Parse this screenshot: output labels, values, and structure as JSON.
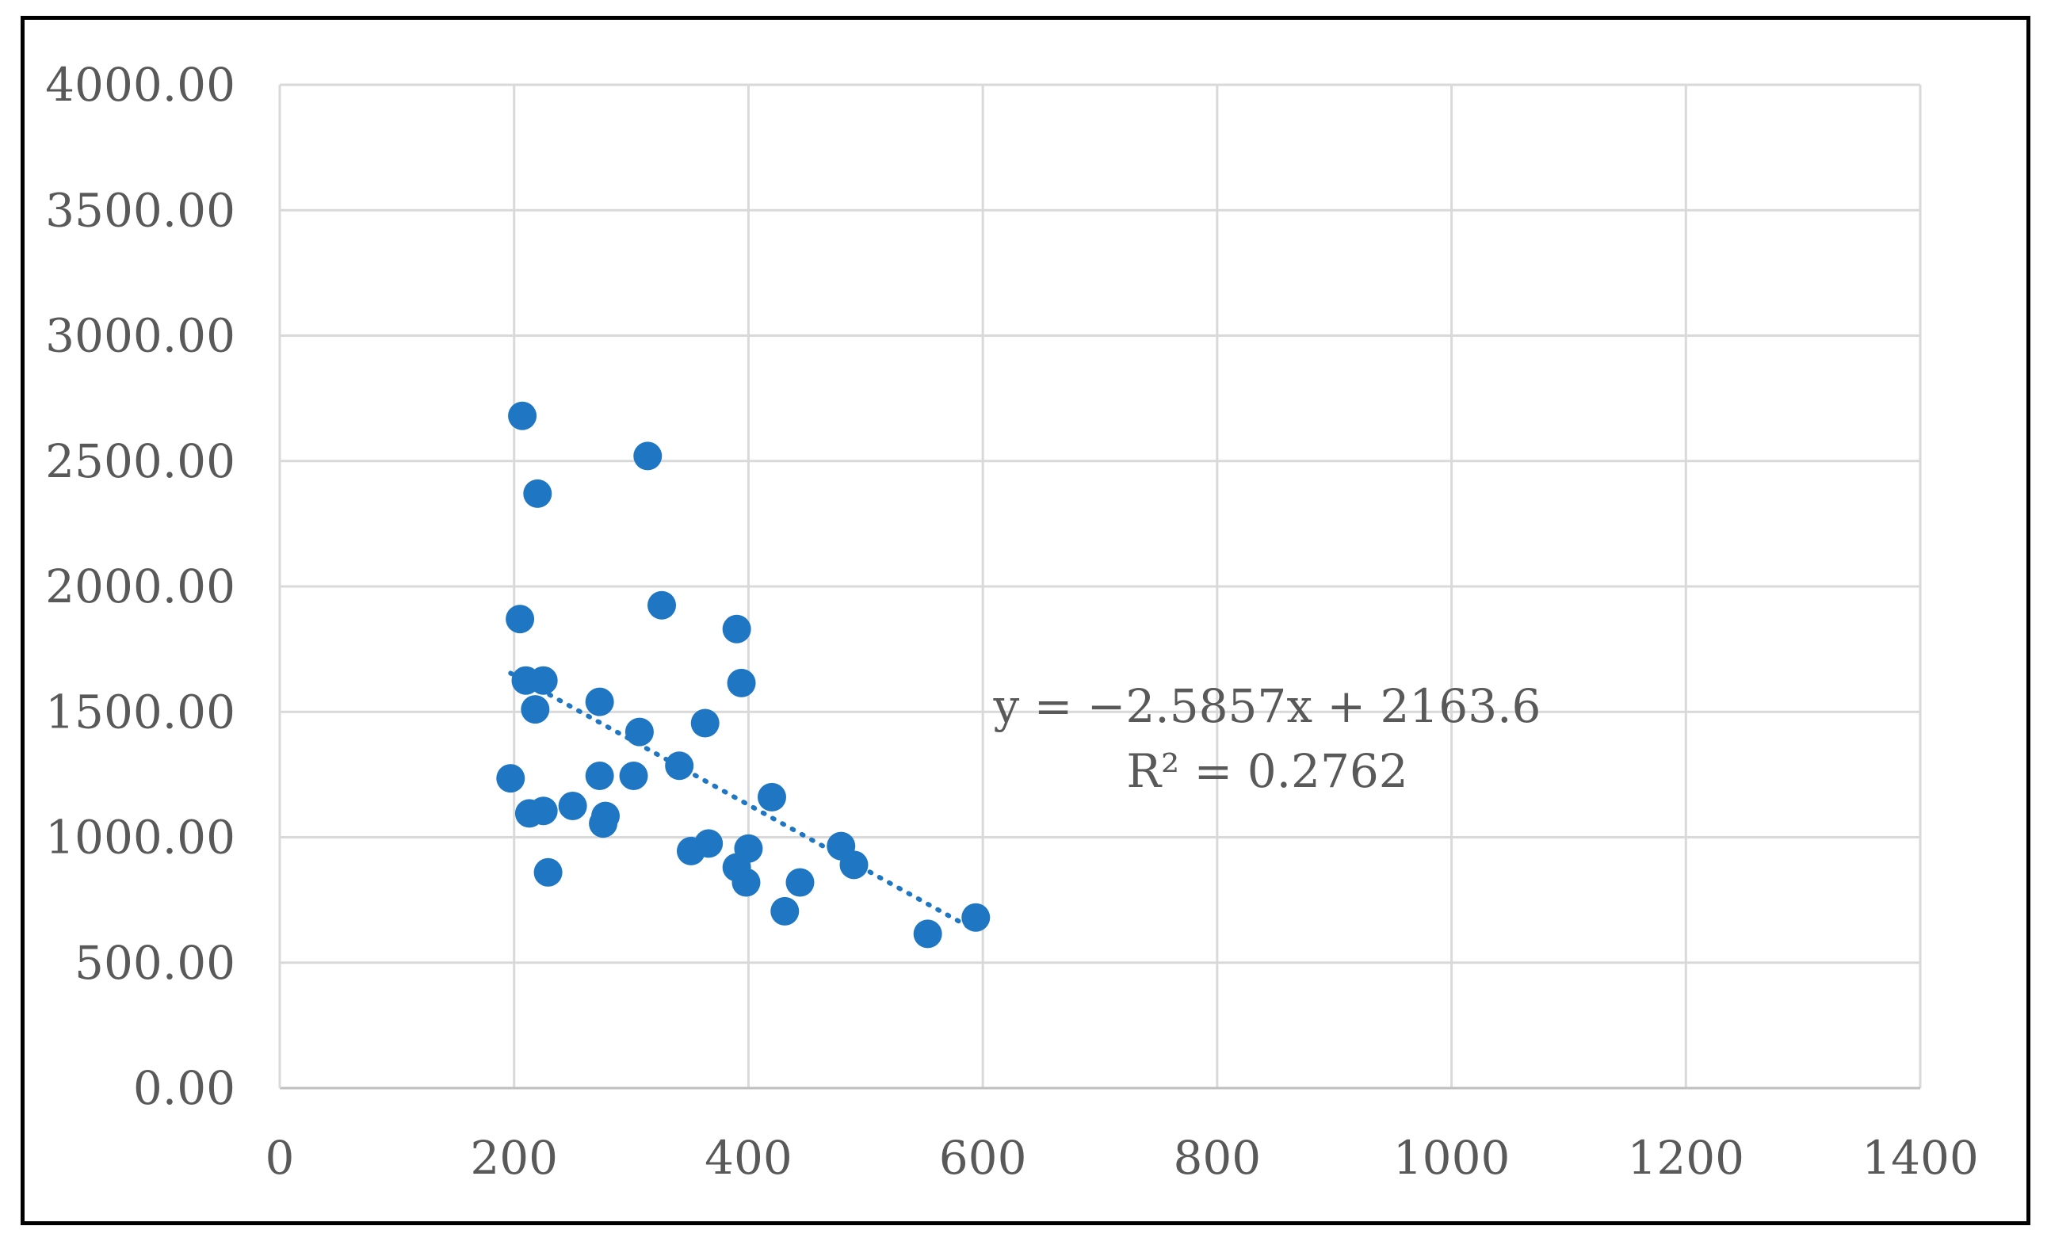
{
  "chart_data": {
    "type": "scatter",
    "title": "",
    "xlabel": "",
    "ylabel": "",
    "xlim": [
      0,
      1400
    ],
    "ylim": [
      0,
      4000
    ],
    "x_ticks": [
      0,
      200,
      400,
      600,
      800,
      1000,
      1200,
      1400
    ],
    "x_tick_labels": [
      "0",
      "200",
      "400",
      "600",
      "800",
      "1000",
      "1200",
      "1400"
    ],
    "y_ticks": [
      0,
      500,
      1000,
      1500,
      2000,
      2500,
      3000,
      3500,
      4000
    ],
    "y_tick_labels": [
      "0.00",
      "500.00",
      "1000.00",
      "1500.00",
      "2000.00",
      "2500.00",
      "3000.00",
      "3500.00",
      "4000.00"
    ],
    "grid": true,
    "legend": "none",
    "marker_color": "#1f77c4",
    "trendline_color": "#1f77c4",
    "series": [
      {
        "points": [
          [
            207,
            2680
          ],
          [
            220,
            2370
          ],
          [
            314,
            2520
          ],
          [
            205,
            1870
          ],
          [
            326,
            1925
          ],
          [
            390,
            1830
          ],
          [
            210,
            1625
          ],
          [
            225,
            1625
          ],
          [
            394,
            1615
          ],
          [
            218,
            1510
          ],
          [
            273,
            1540
          ],
          [
            307,
            1420
          ],
          [
            363,
            1455
          ],
          [
            197,
            1235
          ],
          [
            273,
            1245
          ],
          [
            302,
            1245
          ],
          [
            341,
            1285
          ],
          [
            420,
            1160
          ],
          [
            213,
            1095
          ],
          [
            225,
            1105
          ],
          [
            250,
            1125
          ],
          [
            278,
            1085
          ],
          [
            276,
            1055
          ],
          [
            229,
            860
          ],
          [
            351,
            945
          ],
          [
            366,
            975
          ],
          [
            400,
            955
          ],
          [
            390,
            880
          ],
          [
            398,
            820
          ],
          [
            444,
            820
          ],
          [
            479,
            965
          ],
          [
            490,
            890
          ],
          [
            431,
            705
          ],
          [
            553,
            615
          ],
          [
            594,
            680
          ]
        ]
      }
    ],
    "trendline": {
      "type": "linear",
      "style": "dotted",
      "slope": -2.5857,
      "intercept": 2163.6,
      "x_range": [
        197,
        594
      ],
      "equation_text": "y = −2.5857x + 2163.6",
      "r2_text": "R² = 0.2762"
    }
  }
}
